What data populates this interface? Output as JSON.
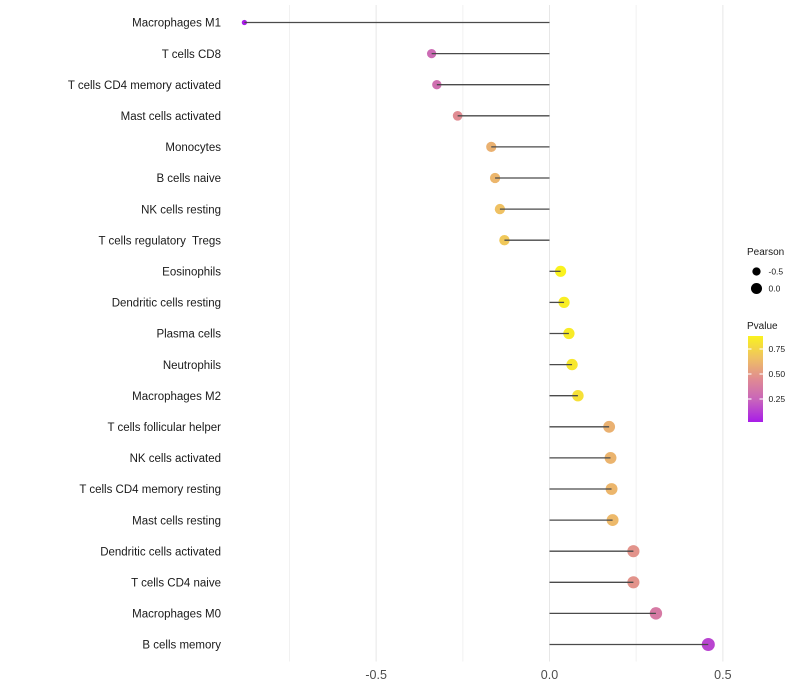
{
  "chart_data": {
    "type": "scatter",
    "variant": "lollipop",
    "orientation": "horizontal",
    "title": "",
    "xlabel": "",
    "ylabel": "",
    "xlim": [
      -0.95,
      0.55
    ],
    "grid": "on",
    "baseline": 0,
    "x_ticks": [
      {
        "value": -0.5,
        "label": "-0.5"
      },
      {
        "value": 0.0,
        "label": "0.0"
      },
      {
        "value": 0.5,
        "label": "0.5"
      }
    ],
    "grid_values": [
      -0.75,
      -0.5,
      -0.25,
      0,
      0.25,
      0.5
    ],
    "points": [
      {
        "label": "Macrophages M1",
        "pearson": -0.88,
        "pvalue": 0.02
      },
      {
        "label": "T cells CD8",
        "pearson": -0.34,
        "pvalue": 0.28
      },
      {
        "label": "T cells CD4 memory activated",
        "pearson": -0.325,
        "pvalue": 0.3
      },
      {
        "label": "Mast cells activated",
        "pearson": -0.265,
        "pvalue": 0.45
      },
      {
        "label": "Monocytes",
        "pearson": -0.168,
        "pvalue": 0.6
      },
      {
        "label": "B cells naive",
        "pearson": -0.157,
        "pvalue": 0.62
      },
      {
        "label": "NK cells resting",
        "pearson": -0.143,
        "pvalue": 0.66
      },
      {
        "label": "T cells regulatory  Tregs",
        "pearson": -0.13,
        "pvalue": 0.69
      },
      {
        "label": "Eosinophils",
        "pearson": 0.032,
        "pvalue": 0.88
      },
      {
        "label": "Dendritic cells resting",
        "pearson": 0.042,
        "pvalue": 0.86
      },
      {
        "label": "Plasma cells",
        "pearson": 0.056,
        "pvalue": 0.85
      },
      {
        "label": "Neutrophils",
        "pearson": 0.065,
        "pvalue": 0.83
      },
      {
        "label": "Macrophages M2",
        "pearson": 0.082,
        "pvalue": 0.8
      },
      {
        "label": "T cells follicular helper",
        "pearson": 0.172,
        "pvalue": 0.6
      },
      {
        "label": "NK cells activated",
        "pearson": 0.176,
        "pvalue": 0.61
      },
      {
        "label": "T cells CD4 memory resting",
        "pearson": 0.179,
        "pvalue": 0.62
      },
      {
        "label": "Mast cells resting",
        "pearson": 0.182,
        "pvalue": 0.63
      },
      {
        "label": "Dendritic cells activated",
        "pearson": 0.242,
        "pvalue": 0.48
      },
      {
        "label": "T cells CD4 naive",
        "pearson": 0.242,
        "pvalue": 0.48
      },
      {
        "label": "Macrophages M0",
        "pearson": 0.307,
        "pvalue": 0.36
      },
      {
        "label": "B cells memory",
        "pearson": 0.458,
        "pvalue": 0.14
      }
    ],
    "legend": {
      "position": "right",
      "pearson": {
        "title": "Pearson",
        "items": [
          {
            "label": "-0.5",
            "value": -0.5
          },
          {
            "label": "0.0",
            "value": 0.0
          }
        ]
      },
      "pvalue": {
        "title": "Pvalue",
        "tick_labels": [
          "0.75",
          "0.50",
          "0.25"
        ],
        "tick_values": [
          0.75,
          0.5,
          0.25
        ],
        "range": [
          0.02,
          0.88
        ],
        "gradient_stops": [
          "#A81CE8",
          "#C763BD",
          "#E08B92",
          "#EFC262",
          "#FAF21E"
        ]
      }
    }
  },
  "colors": {
    "background": "#ffffff",
    "stem": "#4a4a4a",
    "grid_major": "#e7e7e7",
    "grid_minor": "#f1f1f1",
    "axis_tick_text": "#4d4d4d",
    "category_text": "#1a1a1a",
    "legend_text": "#1a1a1a",
    "legend_dot": "#000000",
    "colorbar_tick": "#ffffff"
  }
}
